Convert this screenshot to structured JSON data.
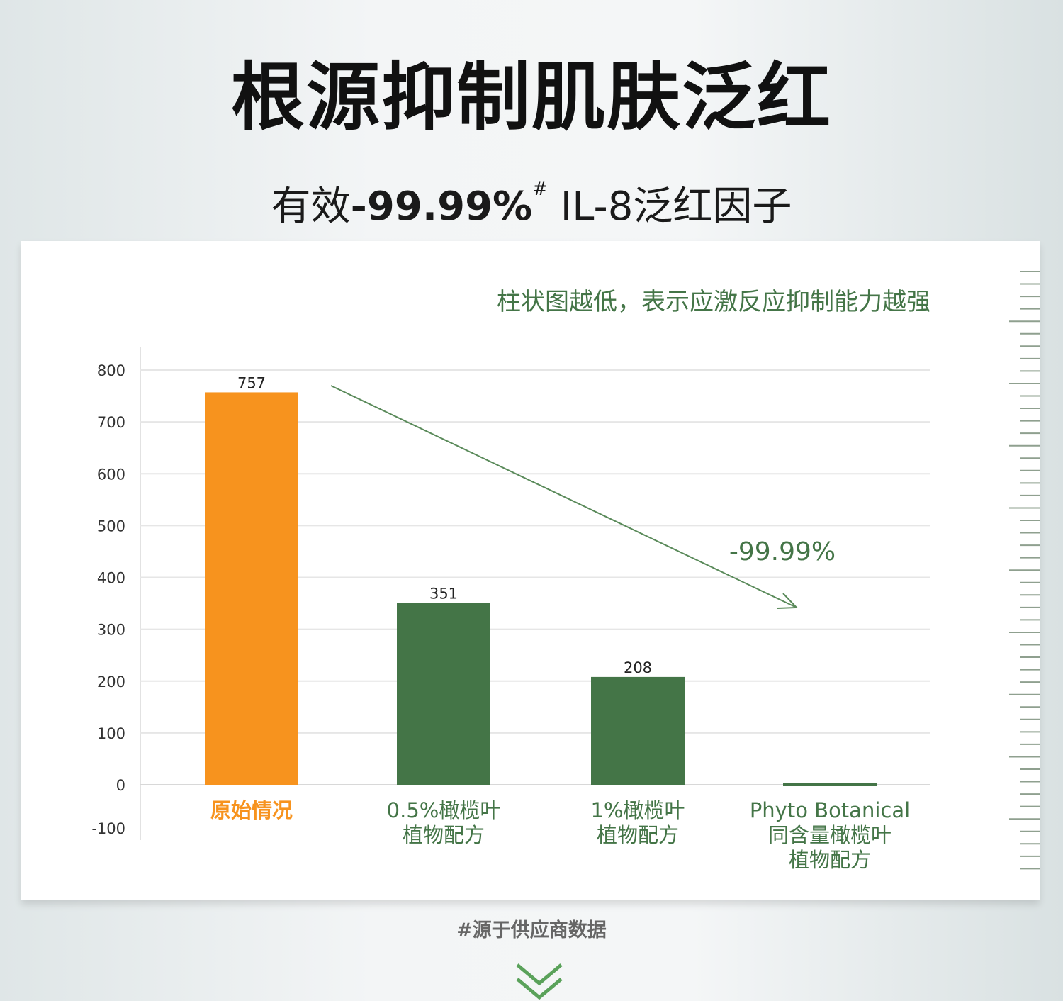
{
  "header": {
    "title": "根源抑制肌肤泛红",
    "subtitle_prefix": "有效",
    "subtitle_value": "-99.99%",
    "subtitle_mark": "#",
    "subtitle_suffix": " IL-8泛红因子"
  },
  "footnote": "#源于供应商数据",
  "chevron_icon": "double-chevron-down-icon",
  "chart_data": {
    "type": "bar",
    "annotation": "柱状图越低，表示应激反应抑制能力越强",
    "arrow_label": "-99.99%",
    "categories": [
      [
        "原始情况"
      ],
      [
        "0.5%橄榄叶",
        "植物配方"
      ],
      [
        "1%橄榄叶",
        "植物配方"
      ],
      [
        "Phyto Botanical",
        "同含量橄榄叶",
        "植物配方"
      ]
    ],
    "values": [
      757,
      351,
      208,
      0.08
    ],
    "data_labels": [
      "757",
      "351",
      "208",
      ""
    ],
    "colors": [
      "#f7931e",
      "#447547",
      "#447547",
      "#447547"
    ],
    "label_colors": [
      "#f7931e",
      "#447547",
      "#447547",
      "#447547"
    ],
    "yticks": [
      "800",
      "700",
      "600",
      "500",
      "400",
      "300",
      "200",
      "100",
      "0",
      "-100"
    ],
    "ylim": [
      -100,
      800
    ],
    "grid": true
  }
}
